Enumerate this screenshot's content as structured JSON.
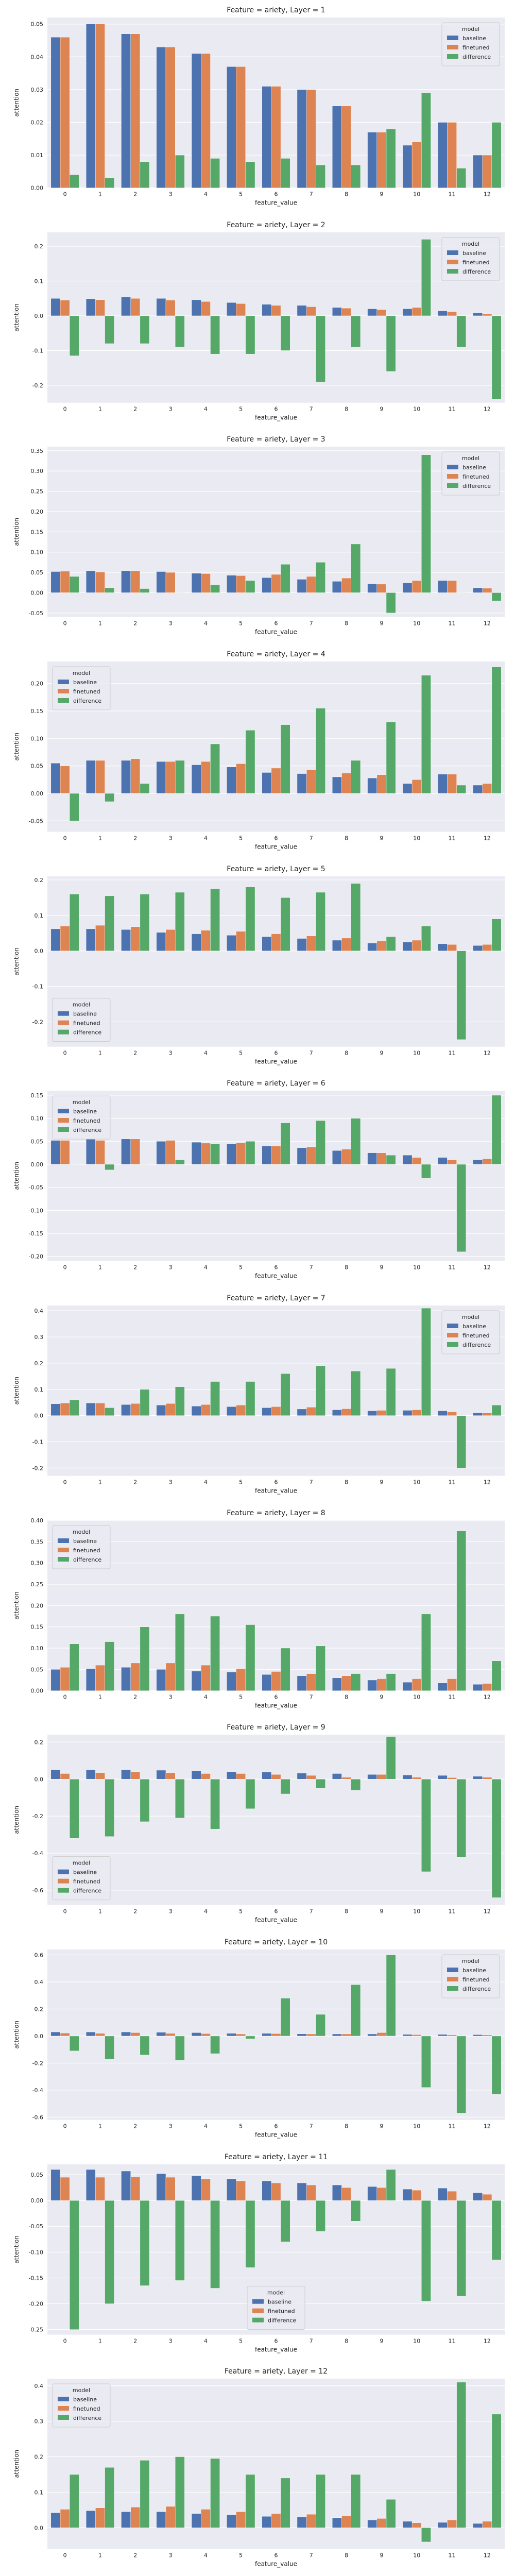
{
  "palette": {
    "baseline": "#4c72b0",
    "finetuned": "#dd8452",
    "difference": "#55a868",
    "background": "#eaeaf2",
    "grid": "#ffffff"
  },
  "chart_data": [
    {
      "type": "bar",
      "title": "Feature = ariety, Layer = 1",
      "xlabel": "feature_value",
      "ylabel": "attention",
      "categories": [
        "0",
        "1",
        "2",
        "3",
        "4",
        "5",
        "6",
        "7",
        "8",
        "9",
        "10",
        "11",
        "12"
      ],
      "ylim": [
        0,
        0.052
      ],
      "yticks": [
        0.0,
        0.01,
        0.02,
        0.03,
        0.04,
        0.05
      ],
      "legend": {
        "title": "model",
        "position": "upper-right"
      },
      "series": [
        {
          "name": "baseline",
          "values": [
            0.046,
            0.05,
            0.047,
            0.043,
            0.041,
            0.037,
            0.031,
            0.03,
            0.025,
            0.017,
            0.013,
            0.02,
            0.01
          ]
        },
        {
          "name": "finetuned",
          "values": [
            0.046,
            0.05,
            0.047,
            0.043,
            0.041,
            0.037,
            0.031,
            0.03,
            0.025,
            0.017,
            0.014,
            0.02,
            0.01
          ]
        },
        {
          "name": "difference",
          "values": [
            0.004,
            0.003,
            0.008,
            0.01,
            0.009,
            0.008,
            0.009,
            0.007,
            0.007,
            0.018,
            0.029,
            0.006,
            0.02
          ]
        }
      ]
    },
    {
      "type": "bar",
      "title": "Feature = ariety, Layer = 2",
      "xlabel": "feature_value",
      "ylabel": "attention",
      "categories": [
        "0",
        "1",
        "2",
        "3",
        "4",
        "5",
        "6",
        "7",
        "8",
        "9",
        "10",
        "11",
        "12"
      ],
      "ylim": [
        -0.25,
        0.24
      ],
      "yticks": [
        -0.2,
        -0.1,
        0.0,
        0.1,
        0.2
      ],
      "legend": {
        "title": "model",
        "position": "upper-right"
      },
      "series": [
        {
          "name": "baseline",
          "values": [
            0.05,
            0.049,
            0.054,
            0.05,
            0.046,
            0.038,
            0.033,
            0.03,
            0.024,
            0.02,
            0.02,
            0.014,
            0.008
          ]
        },
        {
          "name": "finetuned",
          "values": [
            0.045,
            0.046,
            0.05,
            0.045,
            0.041,
            0.035,
            0.03,
            0.026,
            0.022,
            0.018,
            0.024,
            0.012,
            0.006
          ]
        },
        {
          "name": "difference",
          "values": [
            -0.115,
            -0.08,
            -0.08,
            -0.09,
            -0.11,
            -0.11,
            -0.1,
            -0.19,
            -0.09,
            -0.16,
            0.22,
            -0.09,
            -0.24
          ]
        }
      ]
    },
    {
      "type": "bar",
      "title": "Feature = ariety, Layer = 3",
      "xlabel": "feature_value",
      "ylabel": "attention",
      "categories": [
        "0",
        "1",
        "2",
        "3",
        "4",
        "5",
        "6",
        "7",
        "8",
        "9",
        "10",
        "11",
        "12"
      ],
      "ylim": [
        -0.06,
        0.36
      ],
      "yticks": [
        -0.05,
        0.0,
        0.05,
        0.1,
        0.15,
        0.2,
        0.25,
        0.3,
        0.35
      ],
      "legend": {
        "title": "model",
        "position": "upper-right"
      },
      "series": [
        {
          "name": "baseline",
          "values": [
            0.052,
            0.054,
            0.054,
            0.052,
            0.048,
            0.043,
            0.037,
            0.033,
            0.028,
            0.022,
            0.024,
            0.03,
            0.012
          ]
        },
        {
          "name": "finetuned",
          "values": [
            0.053,
            0.051,
            0.054,
            0.05,
            0.047,
            0.042,
            0.045,
            0.04,
            0.036,
            0.021,
            0.03,
            0.03,
            0.011
          ]
        },
        {
          "name": "difference",
          "values": [
            0.04,
            0.012,
            0.01,
            0.0,
            0.02,
            0.03,
            0.07,
            0.075,
            0.12,
            -0.05,
            0.34,
            0.0,
            -0.02
          ]
        }
      ]
    },
    {
      "type": "bar",
      "title": "Feature = ariety, Layer = 4",
      "xlabel": "feature_value",
      "ylabel": "attention",
      "categories": [
        "0",
        "1",
        "2",
        "3",
        "4",
        "5",
        "6",
        "7",
        "8",
        "9",
        "10",
        "11",
        "12"
      ],
      "ylim": [
        -0.07,
        0.24
      ],
      "yticks": [
        -0.05,
        0.0,
        0.05,
        0.1,
        0.15,
        0.2
      ],
      "legend": {
        "title": "model",
        "position": "upper-left"
      },
      "series": [
        {
          "name": "baseline",
          "values": [
            0.055,
            0.06,
            0.06,
            0.058,
            0.052,
            0.048,
            0.038,
            0.036,
            0.03,
            0.028,
            0.018,
            0.035,
            0.015
          ]
        },
        {
          "name": "finetuned",
          "values": [
            0.05,
            0.06,
            0.063,
            0.058,
            0.058,
            0.054,
            0.046,
            0.043,
            0.037,
            0.034,
            0.025,
            0.035,
            0.018
          ]
        },
        {
          "name": "difference",
          "values": [
            -0.05,
            -0.015,
            0.018,
            0.06,
            0.09,
            0.115,
            0.125,
            0.155,
            0.06,
            0.13,
            0.215,
            0.015,
            0.23
          ]
        }
      ]
    },
    {
      "type": "bar",
      "title": "Feature = ariety, Layer = 5",
      "xlabel": "feature_value",
      "ylabel": "attention",
      "categories": [
        "0",
        "1",
        "2",
        "3",
        "4",
        "5",
        "6",
        "7",
        "8",
        "9",
        "10",
        "11",
        "12"
      ],
      "ylim": [
        -0.27,
        0.21
      ],
      "yticks": [
        -0.2,
        -0.1,
        0.0,
        0.1,
        0.2
      ],
      "legend": {
        "title": "model",
        "position": "lower-left"
      },
      "series": [
        {
          "name": "baseline",
          "values": [
            0.062,
            0.062,
            0.06,
            0.052,
            0.048,
            0.044,
            0.04,
            0.035,
            0.03,
            0.022,
            0.025,
            0.02,
            0.015
          ]
        },
        {
          "name": "finetuned",
          "values": [
            0.07,
            0.072,
            0.068,
            0.06,
            0.058,
            0.055,
            0.048,
            0.042,
            0.036,
            0.028,
            0.03,
            0.018,
            0.018
          ]
        },
        {
          "name": "difference",
          "values": [
            0.16,
            0.155,
            0.16,
            0.165,
            0.175,
            0.18,
            0.15,
            0.165,
            0.19,
            0.04,
            0.07,
            -0.25,
            0.09
          ]
        }
      ]
    },
    {
      "type": "bar",
      "title": "Feature = ariety, Layer = 6",
      "xlabel": "feature_value",
      "ylabel": "attention",
      "categories": [
        "0",
        "1",
        "2",
        "3",
        "4",
        "5",
        "6",
        "7",
        "8",
        "9",
        "10",
        "11",
        "12"
      ],
      "ylim": [
        -0.21,
        0.16
      ],
      "yticks": [
        -0.2,
        -0.15,
        -0.1,
        -0.05,
        0.0,
        0.05,
        0.1,
        0.15
      ],
      "legend": {
        "title": "model",
        "position": "upper-left"
      },
      "series": [
        {
          "name": "baseline",
          "values": [
            0.052,
            0.055,
            0.055,
            0.05,
            0.048,
            0.045,
            0.04,
            0.036,
            0.03,
            0.025,
            0.02,
            0.015,
            0.01
          ]
        },
        {
          "name": "finetuned",
          "values": [
            0.052,
            0.052,
            0.055,
            0.052,
            0.046,
            0.047,
            0.04,
            0.038,
            0.033,
            0.025,
            0.015,
            0.01,
            0.012
          ]
        },
        {
          "name": "difference",
          "values": [
            0.0,
            -0.012,
            0.0,
            0.01,
            0.045,
            0.05,
            0.09,
            0.095,
            0.1,
            0.02,
            -0.03,
            -0.19,
            0.15
          ]
        }
      ]
    },
    {
      "type": "bar",
      "title": "Feature = ariety, Layer = 7",
      "xlabel": "feature_value",
      "ylabel": "attention",
      "categories": [
        "0",
        "1",
        "2",
        "3",
        "4",
        "5",
        "6",
        "7",
        "8",
        "9",
        "10",
        "11",
        "12"
      ],
      "ylim": [
        -0.23,
        0.42
      ],
      "yticks": [
        -0.2,
        -0.1,
        0.0,
        0.1,
        0.2,
        0.3,
        0.4
      ],
      "legend": {
        "title": "model",
        "position": "upper-right"
      },
      "series": [
        {
          "name": "baseline",
          "values": [
            0.045,
            0.048,
            0.042,
            0.04,
            0.036,
            0.034,
            0.03,
            0.025,
            0.022,
            0.018,
            0.02,
            0.018,
            0.01
          ]
        },
        {
          "name": "finetuned",
          "values": [
            0.048,
            0.048,
            0.046,
            0.046,
            0.042,
            0.04,
            0.034,
            0.032,
            0.026,
            0.02,
            0.022,
            0.014,
            0.01
          ]
        },
        {
          "name": "difference",
          "values": [
            0.06,
            0.03,
            0.1,
            0.11,
            0.13,
            0.13,
            0.16,
            0.19,
            0.17,
            0.18,
            0.41,
            -0.2,
            0.04
          ]
        }
      ]
    },
    {
      "type": "bar",
      "title": "Feature = ariety, Layer = 8",
      "xlabel": "feature_value",
      "ylabel": "attention",
      "categories": [
        "0",
        "1",
        "2",
        "3",
        "4",
        "5",
        "6",
        "7",
        "8",
        "9",
        "10",
        "11",
        "12"
      ],
      "ylim": [
        0,
        0.4
      ],
      "yticks": [
        0.0,
        0.05,
        0.1,
        0.15,
        0.2,
        0.25,
        0.3,
        0.35,
        0.4
      ],
      "legend": {
        "title": "model",
        "position": "upper-left"
      },
      "series": [
        {
          "name": "baseline",
          "values": [
            0.05,
            0.052,
            0.055,
            0.05,
            0.046,
            0.044,
            0.038,
            0.035,
            0.03,
            0.025,
            0.02,
            0.018,
            0.015
          ]
        },
        {
          "name": "finetuned",
          "values": [
            0.055,
            0.06,
            0.065,
            0.065,
            0.06,
            0.052,
            0.045,
            0.04,
            0.035,
            0.028,
            0.028,
            0.028,
            0.017
          ]
        },
        {
          "name": "difference",
          "values": [
            0.11,
            0.115,
            0.15,
            0.18,
            0.175,
            0.155,
            0.1,
            0.105,
            0.04,
            0.04,
            0.18,
            0.375,
            0.07
          ]
        }
      ]
    },
    {
      "type": "bar",
      "title": "Feature = ariety, Layer = 9",
      "xlabel": "feature_value",
      "ylabel": "attention",
      "categories": [
        "0",
        "1",
        "2",
        "3",
        "4",
        "5",
        "6",
        "7",
        "8",
        "9",
        "10",
        "11",
        "12"
      ],
      "ylim": [
        -0.68,
        0.24
      ],
      "yticks": [
        -0.6,
        -0.4,
        -0.2,
        0.0,
        0.2
      ],
      "legend": {
        "title": "model",
        "position": "lower-left"
      },
      "series": [
        {
          "name": "baseline",
          "values": [
            0.05,
            0.05,
            0.05,
            0.048,
            0.045,
            0.04,
            0.038,
            0.032,
            0.03,
            0.025,
            0.022,
            0.02,
            0.015
          ]
        },
        {
          "name": "finetuned",
          "values": [
            0.03,
            0.035,
            0.04,
            0.035,
            0.03,
            0.03,
            0.025,
            0.02,
            0.01,
            0.025,
            0.01,
            0.008,
            0.01
          ]
        },
        {
          "name": "difference",
          "values": [
            -0.32,
            -0.31,
            -0.23,
            -0.21,
            -0.27,
            -0.16,
            -0.08,
            -0.05,
            -0.06,
            0.23,
            -0.5,
            -0.42,
            -0.64
          ]
        }
      ]
    },
    {
      "type": "bar",
      "title": "Feature = ariety, Layer = 10",
      "xlabel": "feature_value",
      "ylabel": "attention",
      "categories": [
        "0",
        "1",
        "2",
        "3",
        "4",
        "5",
        "6",
        "7",
        "8",
        "9",
        "10",
        "11",
        "12"
      ],
      "ylim": [
        -0.62,
        0.64
      ],
      "yticks": [
        -0.6,
        -0.4,
        -0.2,
        0.0,
        0.2,
        0.4,
        0.6
      ],
      "legend": {
        "title": "model",
        "position": "upper-right"
      },
      "series": [
        {
          "name": "baseline",
          "values": [
            0.03,
            0.03,
            0.03,
            0.028,
            0.025,
            0.02,
            0.02,
            0.016,
            0.015,
            0.015,
            0.012,
            0.012,
            0.01
          ]
        },
        {
          "name": "finetuned",
          "values": [
            0.022,
            0.02,
            0.025,
            0.02,
            0.018,
            0.015,
            0.018,
            0.015,
            0.015,
            0.025,
            0.01,
            0.008,
            0.008
          ]
        },
        {
          "name": "difference",
          "values": [
            -0.11,
            -0.17,
            -0.14,
            -0.18,
            -0.13,
            -0.02,
            0.28,
            0.16,
            0.38,
            0.6,
            -0.38,
            -0.57,
            -0.43
          ]
        }
      ]
    },
    {
      "type": "bar",
      "title": "Feature = ariety, Layer = 11",
      "xlabel": "feature_value",
      "ylabel": "attention",
      "categories": [
        "0",
        "1",
        "2",
        "3",
        "4",
        "5",
        "6",
        "7",
        "8",
        "9",
        "10",
        "11",
        "12"
      ],
      "ylim": [
        -0.26,
        0.07
      ],
      "yticks": [
        -0.25,
        -0.2,
        -0.15,
        -0.1,
        -0.05,
        0.0,
        0.05
      ],
      "legend": {
        "title": "model",
        "position": "lower-center"
      },
      "series": [
        {
          "name": "baseline",
          "values": [
            0.06,
            0.06,
            0.057,
            0.052,
            0.048,
            0.042,
            0.038,
            0.034,
            0.03,
            0.027,
            0.022,
            0.024,
            0.015
          ]
        },
        {
          "name": "finetuned",
          "values": [
            0.045,
            0.045,
            0.046,
            0.045,
            0.042,
            0.038,
            0.034,
            0.03,
            0.025,
            0.025,
            0.02,
            0.018,
            0.012
          ]
        },
        {
          "name": "difference",
          "values": [
            -0.25,
            -0.2,
            -0.165,
            -0.155,
            -0.17,
            -0.13,
            -0.08,
            -0.06,
            -0.04,
            0.06,
            -0.195,
            -0.185,
            -0.115
          ]
        }
      ]
    },
    {
      "type": "bar",
      "title": "Feature = ariety, Layer = 12",
      "xlabel": "feature_value",
      "ylabel": "attention",
      "categories": [
        "0",
        "1",
        "2",
        "3",
        "4",
        "5",
        "6",
        "7",
        "8",
        "9",
        "10",
        "11",
        "12"
      ],
      "ylim": [
        -0.06,
        0.42
      ],
      "yticks": [
        0.0,
        0.1,
        0.2,
        0.3,
        0.4
      ],
      "legend": {
        "title": "model",
        "position": "upper-left"
      },
      "series": [
        {
          "name": "baseline",
          "values": [
            0.042,
            0.048,
            0.045,
            0.045,
            0.04,
            0.036,
            0.032,
            0.03,
            0.028,
            0.022,
            0.018,
            0.015,
            0.012
          ]
        },
        {
          "name": "finetuned",
          "values": [
            0.052,
            0.056,
            0.058,
            0.06,
            0.052,
            0.045,
            0.04,
            0.038,
            0.034,
            0.026,
            0.014,
            0.022,
            0.018
          ]
        },
        {
          "name": "difference",
          "values": [
            0.15,
            0.17,
            0.19,
            0.2,
            0.195,
            0.15,
            0.14,
            0.15,
            0.15,
            0.08,
            -0.04,
            0.41,
            0.32
          ]
        }
      ]
    }
  ]
}
